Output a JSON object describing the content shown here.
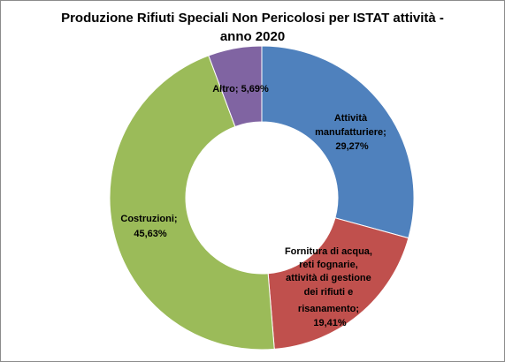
{
  "chart_data": {
    "type": "pie",
    "title_line1": "Produzione Rifiuti Speciali Non Pericolosi per ISTAT attività -",
    "title_line2": "anno 2020",
    "slices": [
      {
        "name": "Attività manufatturiere",
        "value": 29.27,
        "label": "29,27%",
        "color": "#4f81bd"
      },
      {
        "name": "Fornitura di acqua, reti fognarie, attività di gestione dei rifiuti e risanamento",
        "value": 19.41,
        "label": "19,41%",
        "color": "#c0504d"
      },
      {
        "name": "Costruzioni",
        "value": 45.63,
        "label": "45,63%",
        "color": "#9bbb59"
      },
      {
        "name": "Altro",
        "value": 5.69,
        "label": "5,69%",
        "color": "#8064a2"
      }
    ],
    "data_labels": {
      "manuf": [
        "Attività",
        "manufatturiere;",
        "29,27%"
      ],
      "acqua": [
        "Fornitura di acqua,",
        "reti fognarie,",
        "attività di gestione",
        "dei rifiuti e",
        "risanamento;",
        "19,41%"
      ],
      "costr": [
        "Costruzioni;",
        "45,63%"
      ],
      "altro": [
        "Altro; 5,69%"
      ]
    },
    "legend": "none"
  }
}
